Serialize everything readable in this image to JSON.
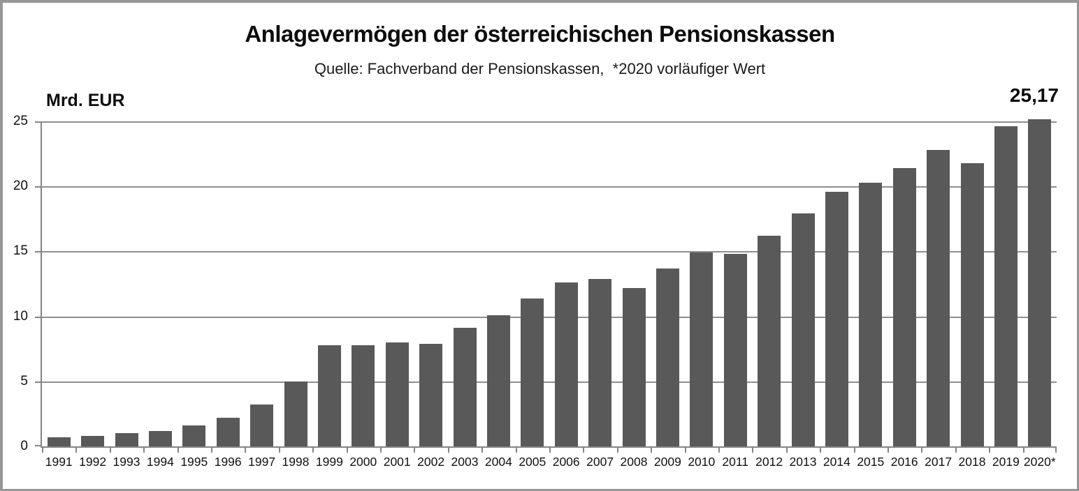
{
  "chart_data": {
    "type": "bar",
    "title": "Anlagevermögen der österreichischen Pensionskassen",
    "subtitle": "Quelle: Fachverband der Pensionskassen,  *2020 vorläufiger Wert",
    "unit_label": "Mrd. EUR",
    "last_value_label": "25,17",
    "categories": [
      "1991",
      "1992",
      "1993",
      "1994",
      "1995",
      "1996",
      "1997",
      "1998",
      "1999",
      "2000",
      "2001",
      "2002",
      "2003",
      "2004",
      "2005",
      "2006",
      "2007",
      "2008",
      "2009",
      "2010",
      "2011",
      "2012",
      "2013",
      "2014",
      "2015",
      "2016",
      "2017",
      "2018",
      "2019",
      "2020*"
    ],
    "values": [
      0.7,
      0.8,
      1.0,
      1.2,
      1.6,
      2.2,
      3.2,
      5.0,
      7.8,
      7.8,
      8.0,
      7.9,
      9.1,
      10.1,
      11.4,
      12.6,
      12.9,
      12.2,
      13.7,
      14.9,
      14.8,
      16.2,
      17.9,
      19.6,
      20.3,
      21.4,
      22.8,
      21.8,
      24.6,
      25.17
    ],
    "xlabel": "",
    "ylabel": "Mrd. EUR",
    "y_ticks": [
      0,
      5,
      10,
      15,
      20,
      25
    ],
    "ylim": [
      0,
      25
    ],
    "grid": true,
    "legend": "none",
    "bar_color": "#595959",
    "gridline_color": "#8e8e8e",
    "axis_color": "#848484",
    "frame_color": "#969696"
  }
}
